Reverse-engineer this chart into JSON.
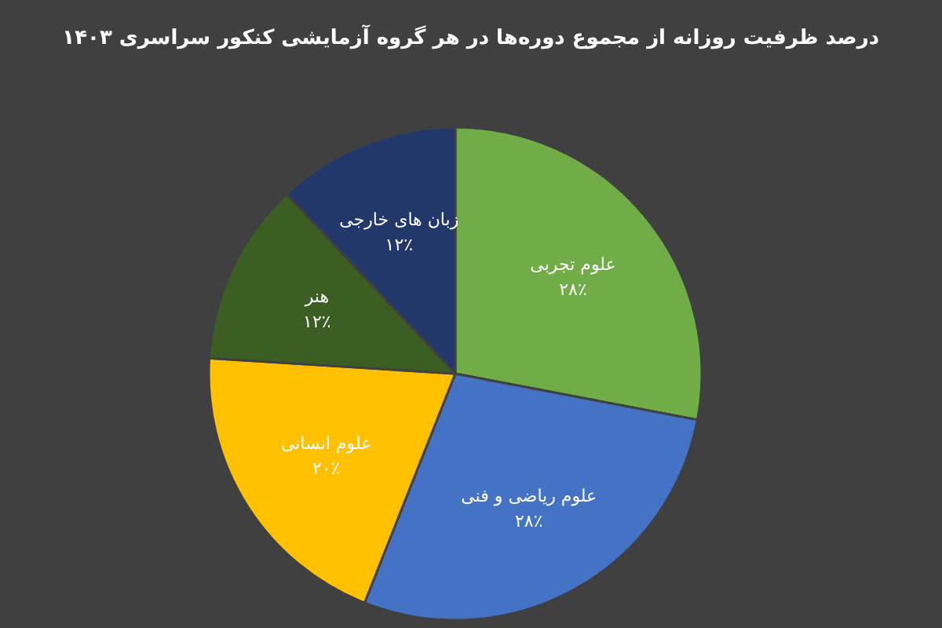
{
  "chart_data": {
    "type": "pie",
    "title": "درصد ظرفیت روزانه از مجموع دوره‌ها در هر گروه آزمایشی کنکور سراسری ۱۴۰۳",
    "categories": [
      "علوم تجربی",
      "علوم ریاضی و فنی",
      "علوم انسانی",
      "هنر",
      "زبان های خارجی"
    ],
    "values": [
      28,
      28,
      20,
      12,
      12
    ],
    "value_labels": [
      "۲۸٪",
      "۲۸٪",
      "۲۰٪",
      "۱۲٪",
      "۱۲٪"
    ],
    "colors": [
      "#70ad47",
      "#4472c4",
      "#ffc000",
      "#3b5f23",
      "#22386a"
    ]
  }
}
